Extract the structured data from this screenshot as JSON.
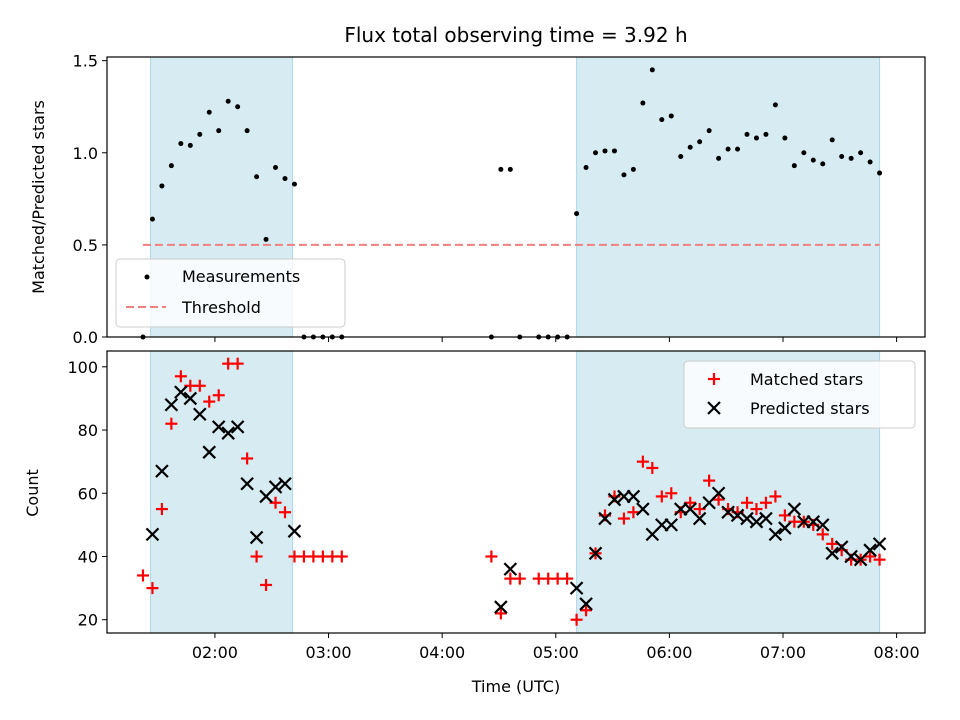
{
  "chart_data": [
    {
      "type": "scatter",
      "title": "Flux total observing time = 3.92 h",
      "xlabel": "",
      "ylabel": "Matched/Predicted stars",
      "xlim": [
        "01:03",
        "08:15"
      ],
      "ylim": [
        0,
        1.52
      ],
      "yticks": [
        "0.0",
        "0.5",
        "1.0",
        "1.5"
      ],
      "xticks": [
        "02:00",
        "03:00",
        "04:00",
        "05:00",
        "06:00",
        "07:00",
        "08:00"
      ],
      "shaded_intervals": [
        [
          "01:26",
          "02:41"
        ],
        [
          "05:11",
          "07:51"
        ]
      ],
      "shade_color": "#add8e6",
      "legend_position": "lower-left",
      "series": [
        {
          "name": "Measurements",
          "marker": "dot",
          "color": "#000000",
          "points": [
            [
              "01:22",
              0.0
            ],
            [
              "01:27",
              0.64
            ],
            [
              "01:32",
              0.82
            ],
            [
              "01:37",
              0.93
            ],
            [
              "01:42",
              1.05
            ],
            [
              "01:47",
              1.04
            ],
            [
              "01:52",
              1.1
            ],
            [
              "01:57",
              1.22
            ],
            [
              "02:02",
              1.12
            ],
            [
              "02:07",
              1.28
            ],
            [
              "02:12",
              1.25
            ],
            [
              "02:17",
              1.12
            ],
            [
              "02:22",
              0.87
            ],
            [
              "02:27",
              0.53
            ],
            [
              "02:32",
              0.92
            ],
            [
              "02:37",
              0.86
            ],
            [
              "02:42",
              0.83
            ],
            [
              "02:47",
              0.0
            ],
            [
              "02:52",
              0.0
            ],
            [
              "02:57",
              0.0
            ],
            [
              "03:02",
              0.0
            ],
            [
              "03:07",
              0.0
            ],
            [
              "04:26",
              0.0
            ],
            [
              "04:31",
              0.91
            ],
            [
              "04:36",
              0.91
            ],
            [
              "04:41",
              0.0
            ],
            [
              "04:51",
              0.0
            ],
            [
              "04:56",
              0.0
            ],
            [
              "05:01",
              0.0
            ],
            [
              "05:06",
              0.0
            ],
            [
              "05:11",
              0.67
            ],
            [
              "05:16",
              0.92
            ],
            [
              "05:21",
              1.0
            ],
            [
              "05:26",
              1.01
            ],
            [
              "05:31",
              1.01
            ],
            [
              "05:36",
              0.88
            ],
            [
              "05:41",
              0.91
            ],
            [
              "05:46",
              1.27
            ],
            [
              "05:51",
              1.45
            ],
            [
              "05:56",
              1.18
            ],
            [
              "06:01",
              1.2
            ],
            [
              "06:06",
              0.98
            ],
            [
              "06:11",
              1.03
            ],
            [
              "06:16",
              1.06
            ],
            [
              "06:21",
              1.12
            ],
            [
              "06:26",
              0.97
            ],
            [
              "06:31",
              1.02
            ],
            [
              "06:36",
              1.02
            ],
            [
              "06:41",
              1.1
            ],
            [
              "06:46",
              1.08
            ],
            [
              "06:51",
              1.1
            ],
            [
              "06:56",
              1.26
            ],
            [
              "07:01",
              1.08
            ],
            [
              "07:06",
              0.93
            ],
            [
              "07:11",
              1.0
            ],
            [
              "07:16",
              0.96
            ],
            [
              "07:21",
              0.94
            ],
            [
              "07:26",
              1.07
            ],
            [
              "07:31",
              0.98
            ],
            [
              "07:36",
              0.97
            ],
            [
              "07:41",
              1.0
            ],
            [
              "07:46",
              0.95
            ],
            [
              "07:51",
              0.89
            ]
          ]
        },
        {
          "name": "Threshold",
          "type": "dashed-line",
          "color": "#f08080",
          "points": [
            [
              "01:22",
              0.5
            ],
            [
              "07:51",
              0.5
            ]
          ]
        }
      ]
    },
    {
      "type": "scatter",
      "title": "",
      "xlabel": "Time (UTC)",
      "ylabel": "Count",
      "xlim": [
        "01:03",
        "08:15"
      ],
      "ylim": [
        15.8,
        105
      ],
      "yticks": [
        "20",
        "40",
        "60",
        "80",
        "100"
      ],
      "xticks": [
        "02:00",
        "03:00",
        "04:00",
        "05:00",
        "06:00",
        "07:00",
        "08:00"
      ],
      "shaded_intervals": [
        [
          "01:26",
          "02:41"
        ],
        [
          "05:11",
          "07:51"
        ]
      ],
      "shade_color": "#add8e6",
      "legend_position": "top-right",
      "series": [
        {
          "name": "Matched stars",
          "marker": "plus",
          "color": "#ff0000",
          "points": [
            [
              "01:22",
              34
            ],
            [
              "01:27",
              30
            ],
            [
              "01:32",
              55
            ],
            [
              "01:37",
              82
            ],
            [
              "01:42",
              97
            ],
            [
              "01:47",
              94
            ],
            [
              "01:52",
              94
            ],
            [
              "01:57",
              89
            ],
            [
              "02:02",
              91
            ],
            [
              "02:07",
              101
            ],
            [
              "02:12",
              101
            ],
            [
              "02:17",
              71
            ],
            [
              "02:22",
              40
            ],
            [
              "02:27",
              31
            ],
            [
              "02:32",
              57
            ],
            [
              "02:37",
              54
            ],
            [
              "02:42",
              40
            ],
            [
              "02:47",
              40
            ],
            [
              "02:52",
              40
            ],
            [
              "02:57",
              40
            ],
            [
              "03:02",
              40
            ],
            [
              "03:07",
              40
            ],
            [
              "04:26",
              40
            ],
            [
              "04:31",
              22
            ],
            [
              "04:36",
              33
            ],
            [
              "04:41",
              33
            ],
            [
              "04:51",
              33
            ],
            [
              "04:56",
              33
            ],
            [
              "05:01",
              33
            ],
            [
              "05:06",
              33
            ],
            [
              "05:11",
              20
            ],
            [
              "05:16",
              23
            ],
            [
              "05:21",
              41
            ],
            [
              "05:26",
              53
            ],
            [
              "05:31",
              59
            ],
            [
              "05:36",
              52
            ],
            [
              "05:41",
              54
            ],
            [
              "05:46",
              70
            ],
            [
              "05:51",
              68
            ],
            [
              "05:56",
              59
            ],
            [
              "06:01",
              60
            ],
            [
              "06:06",
              54
            ],
            [
              "06:11",
              57
            ],
            [
              "06:16",
              55
            ],
            [
              "06:21",
              64
            ],
            [
              "06:26",
              58
            ],
            [
              "06:31",
              55
            ],
            [
              "06:36",
              54
            ],
            [
              "06:41",
              57
            ],
            [
              "06:46",
              55
            ],
            [
              "06:51",
              57
            ],
            [
              "06:56",
              59
            ],
            [
              "07:01",
              53
            ],
            [
              "07:06",
              51
            ],
            [
              "07:11",
              51
            ],
            [
              "07:16",
              50
            ],
            [
              "07:21",
              47
            ],
            [
              "07:26",
              44
            ],
            [
              "07:31",
              42
            ],
            [
              "07:36",
              39
            ],
            [
              "07:41",
              39
            ],
            [
              "07:46",
              40
            ],
            [
              "07:51",
              39
            ]
          ]
        },
        {
          "name": "Predicted stars",
          "marker": "x",
          "color": "#000000",
          "points": [
            [
              "01:27",
              47
            ],
            [
              "01:32",
              67
            ],
            [
              "01:37",
              88
            ],
            [
              "01:42",
              92
            ],
            [
              "01:47",
              90
            ],
            [
              "01:52",
              85
            ],
            [
              "01:57",
              73
            ],
            [
              "02:02",
              81
            ],
            [
              "02:07",
              79
            ],
            [
              "02:12",
              81
            ],
            [
              "02:17",
              63
            ],
            [
              "02:22",
              46
            ],
            [
              "02:27",
              59
            ],
            [
              "02:32",
              62
            ],
            [
              "02:37",
              63
            ],
            [
              "02:42",
              48
            ],
            [
              "04:31",
              24
            ],
            [
              "04:36",
              36
            ],
            [
              "05:11",
              30
            ],
            [
              "05:16",
              25
            ],
            [
              "05:21",
              41
            ],
            [
              "05:26",
              52
            ],
            [
              "05:31",
              58
            ],
            [
              "05:36",
              59
            ],
            [
              "05:41",
              59
            ],
            [
              "05:46",
              55
            ],
            [
              "05:51",
              47
            ],
            [
              "05:56",
              50
            ],
            [
              "06:01",
              50
            ],
            [
              "06:06",
              55
            ],
            [
              "06:11",
              55
            ],
            [
              "06:16",
              52
            ],
            [
              "06:21",
              57
            ],
            [
              "06:26",
              60
            ],
            [
              "06:31",
              54
            ],
            [
              "06:36",
              53
            ],
            [
              "06:41",
              52
            ],
            [
              "06:46",
              51
            ],
            [
              "06:51",
              52
            ],
            [
              "06:56",
              47
            ],
            [
              "07:01",
              49
            ],
            [
              "07:06",
              55
            ],
            [
              "07:11",
              51
            ],
            [
              "07:16",
              51
            ],
            [
              "07:21",
              50
            ],
            [
              "07:26",
              41
            ],
            [
              "07:31",
              43
            ],
            [
              "07:36",
              40
            ],
            [
              "07:41",
              39
            ],
            [
              "07:46",
              42
            ],
            [
              "07:51",
              44
            ]
          ]
        }
      ]
    }
  ]
}
